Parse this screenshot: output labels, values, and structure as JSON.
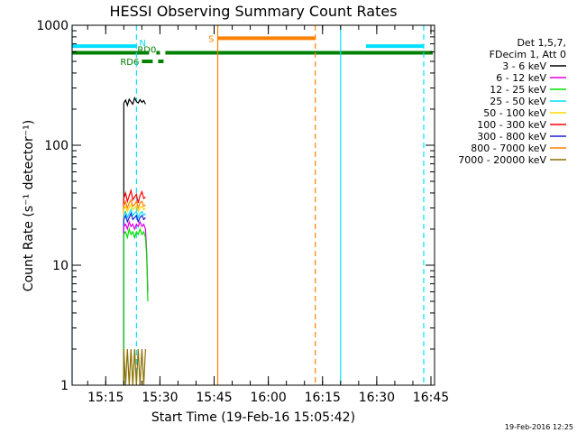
{
  "chart_data": {
    "type": "line",
    "title": "HESSI Observing Summary Count Rates",
    "xlabel": "Start Time (19-Feb-16 15:05:42)",
    "ylabel": "Count Rate (s⁻¹ detector⁻¹)",
    "yscale": "log",
    "ylim": [
      1,
      1000
    ],
    "y_ticks": [
      {
        "value": 1,
        "label": "1"
      },
      {
        "value": 10,
        "label": "10"
      },
      {
        "value": 100,
        "label": "100"
      },
      {
        "value": 1000,
        "label": "1000"
      }
    ],
    "xlim": [
      "15:05:42",
      "16:46:00"
    ],
    "x_ticks": [
      {
        "value": "15:15",
        "label": "15:15"
      },
      {
        "value": "15:30",
        "label": "15:30"
      },
      {
        "value": "15:45",
        "label": "15:45"
      },
      {
        "value": "16:00",
        "label": "16:00"
      },
      {
        "value": "16:15",
        "label": "16:15"
      },
      {
        "value": "16:30",
        "label": "16:30"
      },
      {
        "value": "16:45",
        "label": "16:45"
      }
    ],
    "legend": {
      "placement": "right",
      "header": [
        "Det 1,5,7,",
        "FDecim 1, Att 0"
      ],
      "entries": [
        {
          "label": "3 - 6 keV",
          "color": "#000000"
        },
        {
          "label": "6 - 12 keV",
          "color": "#e000e0"
        },
        {
          "label": "12 - 25 keV",
          "color": "#00e000"
        },
        {
          "label": "25 - 50 keV",
          "color": "#00e0ff"
        },
        {
          "label": "50 - 100 keV",
          "color": "#ffd700"
        },
        {
          "label": "100 - 300 keV",
          "color": "#ff0000"
        },
        {
          "label": "300 - 800 keV",
          "color": "#2020d0"
        },
        {
          "label": "800 - 7000 keV",
          "color": "#ff8000"
        },
        {
          "label": "7000 - 20000 keV",
          "color": "#8a7000"
        }
      ]
    },
    "series": [
      {
        "name": "3 - 6 keV",
        "color": "#000000",
        "x": [
          "15:20:00",
          "15:20:30",
          "15:21:00",
          "15:21:30",
          "15:22:00",
          "15:22:30",
          "15:23:00",
          "15:23:30",
          "15:24:00",
          "15:24:30",
          "15:25:00",
          "15:25:30",
          "15:26:00"
        ],
        "y": [
          225,
          238,
          215,
          242,
          230,
          220,
          248,
          232,
          225,
          240,
          228,
          236,
          220
        ]
      },
      {
        "name": "100 - 300 keV",
        "color": "#ff0000",
        "x": [
          "15:20:00",
          "15:20:30",
          "15:21:00",
          "15:21:30",
          "15:22:00",
          "15:22:30",
          "15:23:00",
          "15:23:30",
          "15:24:00",
          "15:24:30",
          "15:25:00",
          "15:25:30",
          "15:26:00"
        ],
        "y": [
          36,
          40,
          34,
          38,
          42,
          35,
          37,
          39,
          33,
          38,
          41,
          36,
          37
        ]
      },
      {
        "name": "800 - 7000 keV",
        "color": "#ff8000",
        "x": [
          "15:20:00",
          "15:20:30",
          "15:21:00",
          "15:21:30",
          "15:22:00",
          "15:22:30",
          "15:23:00",
          "15:23:30",
          "15:24:00",
          "15:24:30",
          "15:25:00",
          "15:25:30",
          "15:26:00"
        ],
        "y": [
          31,
          34,
          30,
          33,
          35,
          31,
          32,
          34,
          30,
          33,
          34,
          31,
          32
        ]
      },
      {
        "name": "50 - 100 keV",
        "color": "#ffd700",
        "x": [
          "15:20:00",
          "15:20:30",
          "15:21:00",
          "15:21:30",
          "15:22:00",
          "15:22:30",
          "15:23:00",
          "15:23:30",
          "15:24:00",
          "15:24:30",
          "15:25:00",
          "15:25:30",
          "15:26:00"
        ],
        "y": [
          29,
          31,
          28,
          30,
          32,
          29,
          30,
          31,
          28,
          30,
          31,
          29,
          30
        ]
      },
      {
        "name": "25 - 50 keV",
        "color": "#00e0ff",
        "x": [
          "15:20:00",
          "15:20:30",
          "15:21:00",
          "15:21:30",
          "15:22:00",
          "15:22:30",
          "15:23:00",
          "15:23:30",
          "15:24:00",
          "15:24:30",
          "15:25:00",
          "15:25:30",
          "15:26:00"
        ],
        "y": [
          26,
          28,
          25,
          27,
          29,
          26,
          27,
          28,
          25,
          27,
          28,
          26,
          27
        ]
      },
      {
        "name": "300 - 800 keV",
        "color": "#2020d0",
        "x": [
          "15:20:00",
          "15:20:30",
          "15:21:00",
          "15:21:30",
          "15:22:00",
          "15:22:30",
          "15:23:00",
          "15:23:30",
          "15:24:00",
          "15:24:30",
          "15:25:00",
          "15:25:30",
          "15:26:00"
        ],
        "y": [
          24,
          26,
          23,
          25,
          27,
          24,
          25,
          26,
          23,
          25,
          26,
          24,
          25
        ]
      },
      {
        "name": "6 - 12 keV",
        "color": "#e000e0",
        "x": [
          "15:20:00",
          "15:20:30",
          "15:21:00",
          "15:21:30",
          "15:22:00",
          "15:22:30",
          "15:23:00",
          "15:23:30",
          "15:24:00",
          "15:24:30",
          "15:25:00",
          "15:25:30",
          "15:26:00",
          "15:26:20",
          "15:26:40"
        ],
        "y": [
          21,
          22,
          20,
          23,
          21,
          22,
          20,
          22,
          21,
          23,
          21,
          22,
          20,
          13,
          6
        ]
      },
      {
        "name": "12 - 25 keV",
        "color": "#00e000",
        "x": [
          "15:20:00",
          "15:20:30",
          "15:21:00",
          "15:21:30",
          "15:22:00",
          "15:22:30",
          "15:23:00",
          "15:23:30",
          "15:24:00",
          "15:24:30",
          "15:25:00",
          "15:25:30",
          "15:26:00",
          "15:26:20",
          "15:26:40"
        ],
        "y": [
          18,
          19,
          17,
          20,
          18,
          19,
          17,
          19,
          18,
          20,
          18,
          19,
          17,
          12,
          5
        ]
      },
      {
        "name": "7000 - 20000 keV",
        "color": "#8a7000",
        "x": [
          "15:20:00",
          "15:20:30",
          "15:21:00",
          "15:21:30",
          "15:22:00",
          "15:22:30",
          "15:23:00",
          "15:23:30",
          "15:24:00",
          "15:24:30",
          "15:25:00",
          "15:25:30",
          "15:26:00"
        ],
        "y": [
          2,
          1,
          2,
          1,
          2,
          1,
          2,
          1,
          2,
          1,
          2,
          1,
          2
        ]
      }
    ],
    "annotations": {
      "flags": [
        {
          "label": "N",
          "color": "#00e0ff",
          "y": 670,
          "segments": [
            [
              "15:05:42",
              "15:23:30"
            ],
            [
              "16:27:00",
              "16:43:00"
            ]
          ]
        },
        {
          "label": "S",
          "color": "#ff8000",
          "y": 780,
          "segments": [
            [
              "15:46:00",
              "16:13:00"
            ]
          ]
        },
        {
          "label": "RD0",
          "color": "#008000",
          "y": 590,
          "segments": [
            [
              "15:05:42",
              "15:27:00"
            ],
            [
              "15:29:00",
              "15:30:00"
            ],
            [
              "15:31:30",
              "16:45:30"
            ]
          ]
        },
        {
          "label": "RD6",
          "color": "#008000",
          "y": 500,
          "segments": [
            [
              "15:25:00",
              "15:28:00"
            ],
            [
              "15:29:30",
              "15:31:00"
            ]
          ]
        }
      ],
      "vlines": [
        {
          "x": "15:05:42",
          "color": "#00e0ff",
          "style": "solid"
        },
        {
          "x": "15:23:30",
          "color": "#00e0ff",
          "style": "dashed"
        },
        {
          "x": "15:46:00",
          "color": "#ff8000",
          "style": "solid"
        },
        {
          "x": "16:13:00",
          "color": "#ff8000",
          "style": "dashed"
        },
        {
          "x": "16:20:00",
          "color": "#00e0ff",
          "style": "solid"
        },
        {
          "x": "16:43:00",
          "color": "#00e0ff",
          "style": "dashed"
        }
      ]
    },
    "grid": false
  },
  "footer": {
    "timestamp": "19-Feb-2016 12:25"
  }
}
